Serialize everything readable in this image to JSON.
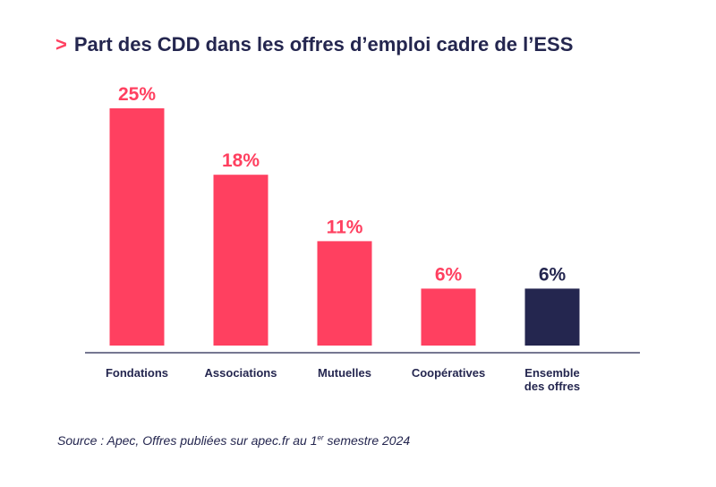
{
  "title": {
    "prefix": ">",
    "text": "Part des CDD dans les offres d’emploi cadre de l’ESS"
  },
  "colors": {
    "accent": "#ff4060",
    "navy": "#24264f",
    "axis": "#24264f"
  },
  "chart_data": {
    "type": "bar",
    "title": "Part des CDD dans les offres d’emploi cadre de l’ESS",
    "categories": [
      [
        "Fondations"
      ],
      [
        "Associations"
      ],
      [
        "Mutuelles"
      ],
      [
        "Coopératives"
      ],
      [
        "Ensemble",
        "des offres"
      ]
    ],
    "values": [
      25,
      18,
      11,
      6,
      6
    ],
    "value_labels": [
      "25%",
      "18%",
      "11%",
      "6%",
      "6%"
    ],
    "highlight_index": 4,
    "xlabel": "",
    "ylabel": "",
    "ylim": [
      0,
      25
    ],
    "grid": false
  },
  "source": {
    "before": "Source : Apec, Offres publiées sur apec.fr au 1",
    "sup": "er",
    "after": " semestre 2024"
  }
}
